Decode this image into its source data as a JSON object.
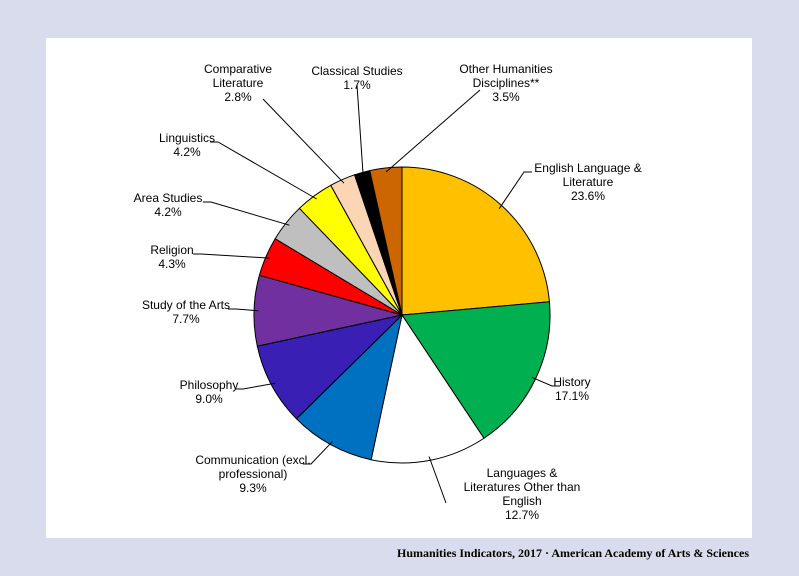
{
  "chart_data": {
    "type": "pie",
    "title": "",
    "start": "12 o'clock",
    "direction": "clockwise",
    "slices": [
      {
        "lines": [
          "English Language  &",
          "Literature",
          "23.6%"
        ],
        "label": "English Language & Literature",
        "value": 23.6,
        "color": "#ffc000"
      },
      {
        "lines": [
          "History",
          "17.1%"
        ],
        "label": "History",
        "value": 17.1,
        "color": "#00b050"
      },
      {
        "lines": [
          "Languages  &",
          "Literatures Other than",
          "English",
          "12.7%"
        ],
        "label": "Languages & Literatures Other than English",
        "value": 12.7,
        "color": "#ffffff"
      },
      {
        "lines": [
          "Communication (excl.",
          "professional)",
          "9.3%"
        ],
        "label": "Communication (excl. professional)",
        "value": 9.3,
        "color": "#0070c0"
      },
      {
        "lines": [
          "Philosophy",
          "9.0%"
        ],
        "label": "Philosophy",
        "value": 9.0,
        "color": "#3a1fb5"
      },
      {
        "lines": [
          "Study of the Arts",
          "7.7%"
        ],
        "label": "Study of the Arts",
        "value": 7.7,
        "color": "#7030a0"
      },
      {
        "lines": [
          "Religion",
          "4.3%"
        ],
        "label": "Religion",
        "value": 4.3,
        "color": "#ff0000"
      },
      {
        "lines": [
          "Area Studies",
          "4.2%"
        ],
        "label": "Area Studies",
        "value": 4.2,
        "color": "#bfbfbf"
      },
      {
        "lines": [
          "Linguistics",
          "4.2%"
        ],
        "label": "Linguistics",
        "value": 4.2,
        "color": "#ffff00"
      },
      {
        "lines": [
          "Comparative",
          "Literature",
          "2.8%"
        ],
        "label": "Comparative Literature",
        "value": 2.8,
        "color": "#fcd5b5"
      },
      {
        "lines": [
          "Classical Studies",
          "1.7%"
        ],
        "label": "Classical Studies",
        "value": 1.7,
        "color": "#000000"
      },
      {
        "lines": [
          "Other Humanities",
          "Disciplines**",
          "3.5%"
        ],
        "label": "Other Humanities Disciplines**",
        "value": 3.5,
        "color": "#cc6600"
      }
    ]
  },
  "footer": {
    "source": "Humanities  Indicators, 2017  · American Academy  of Arts & Sciences"
  }
}
